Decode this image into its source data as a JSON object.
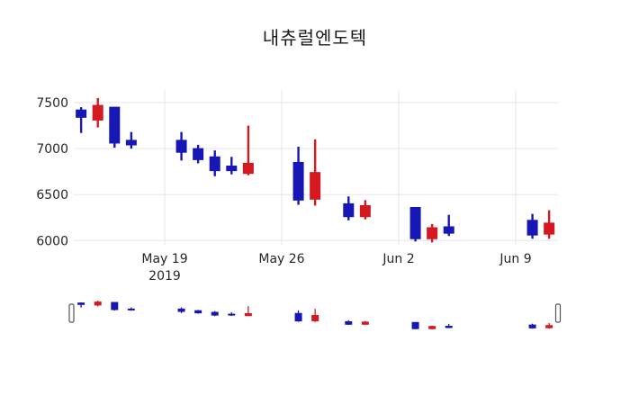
{
  "title": "내츄럴엔도텍",
  "colors": {
    "up": "#d41920",
    "down": "#1717b5",
    "grid": "#e6e6e6",
    "axis_text": "#262626",
    "title_text": "#1a1a1a",
    "background": "#ffffff",
    "handle_fill": "#ffffff",
    "handle_border": "#555555"
  },
  "y_axis": {
    "tick_values": [
      6000,
      6500,
      7000,
      7500
    ],
    "tick_labels": [
      "6000",
      "6500",
      "7000",
      "7500"
    ],
    "range": [
      5950,
      7640
    ],
    "grid": true
  },
  "x_axis": {
    "tick_dates": [
      "2019-05-19",
      "2019-05-26",
      "2019-06-02",
      "2019-06-09"
    ],
    "tick_labels": [
      "May 19",
      "May 26",
      "Jun 2",
      "Jun 9"
    ],
    "year_label": "2019",
    "range": [
      "2019-05-13",
      "2019-06-12"
    ],
    "grid": true
  },
  "chart_data": {
    "type": "candlestick",
    "title": "내츄럴엔도텍",
    "up_color_meaning": "close above open (red)",
    "down_color_meaning": "close below open (blue)",
    "legend": "none",
    "rangeslider": true,
    "candles": [
      {
        "date": "2019-05-14",
        "open": 7420,
        "high": 7450,
        "low": 7170,
        "close": 7340
      },
      {
        "date": "2019-05-15",
        "open": 7310,
        "high": 7550,
        "low": 7230,
        "close": 7470
      },
      {
        "date": "2019-05-16",
        "open": 7450,
        "high": 7450,
        "low": 7010,
        "close": 7060
      },
      {
        "date": "2019-05-17",
        "open": 7090,
        "high": 7180,
        "low": 7000,
        "close": 7040
      },
      {
        "date": "2019-05-20",
        "open": 7090,
        "high": 7180,
        "low": 6870,
        "close": 6960
      },
      {
        "date": "2019-05-21",
        "open": 7000,
        "high": 7040,
        "low": 6840,
        "close": 6880
      },
      {
        "date": "2019-05-22",
        "open": 6910,
        "high": 6980,
        "low": 6700,
        "close": 6760
      },
      {
        "date": "2019-05-23",
        "open": 6810,
        "high": 6910,
        "low": 6720,
        "close": 6760
      },
      {
        "date": "2019-05-24",
        "open": 6730,
        "high": 7250,
        "low": 6710,
        "close": 6840
      },
      {
        "date": "2019-05-27",
        "open": 6850,
        "high": 7020,
        "low": 6390,
        "close": 6440
      },
      {
        "date": "2019-05-28",
        "open": 6450,
        "high": 7100,
        "low": 6380,
        "close": 6740
      },
      {
        "date": "2019-05-30",
        "open": 6400,
        "high": 6480,
        "low": 6220,
        "close": 6260
      },
      {
        "date": "2019-05-31",
        "open": 6260,
        "high": 6440,
        "low": 6230,
        "close": 6380
      },
      {
        "date": "2019-06-03",
        "open": 6360,
        "high": 6360,
        "low": 5990,
        "close": 6020
      },
      {
        "date": "2019-06-04",
        "open": 6020,
        "high": 6180,
        "low": 5980,
        "close": 6140
      },
      {
        "date": "2019-06-05",
        "open": 6150,
        "high": 6280,
        "low": 6050,
        "close": 6080
      },
      {
        "date": "2019-06-10",
        "open": 6220,
        "high": 6290,
        "low": 6020,
        "close": 6060
      },
      {
        "date": "2019-06-11",
        "open": 6070,
        "high": 6330,
        "low": 6020,
        "close": 6190
      }
    ]
  }
}
